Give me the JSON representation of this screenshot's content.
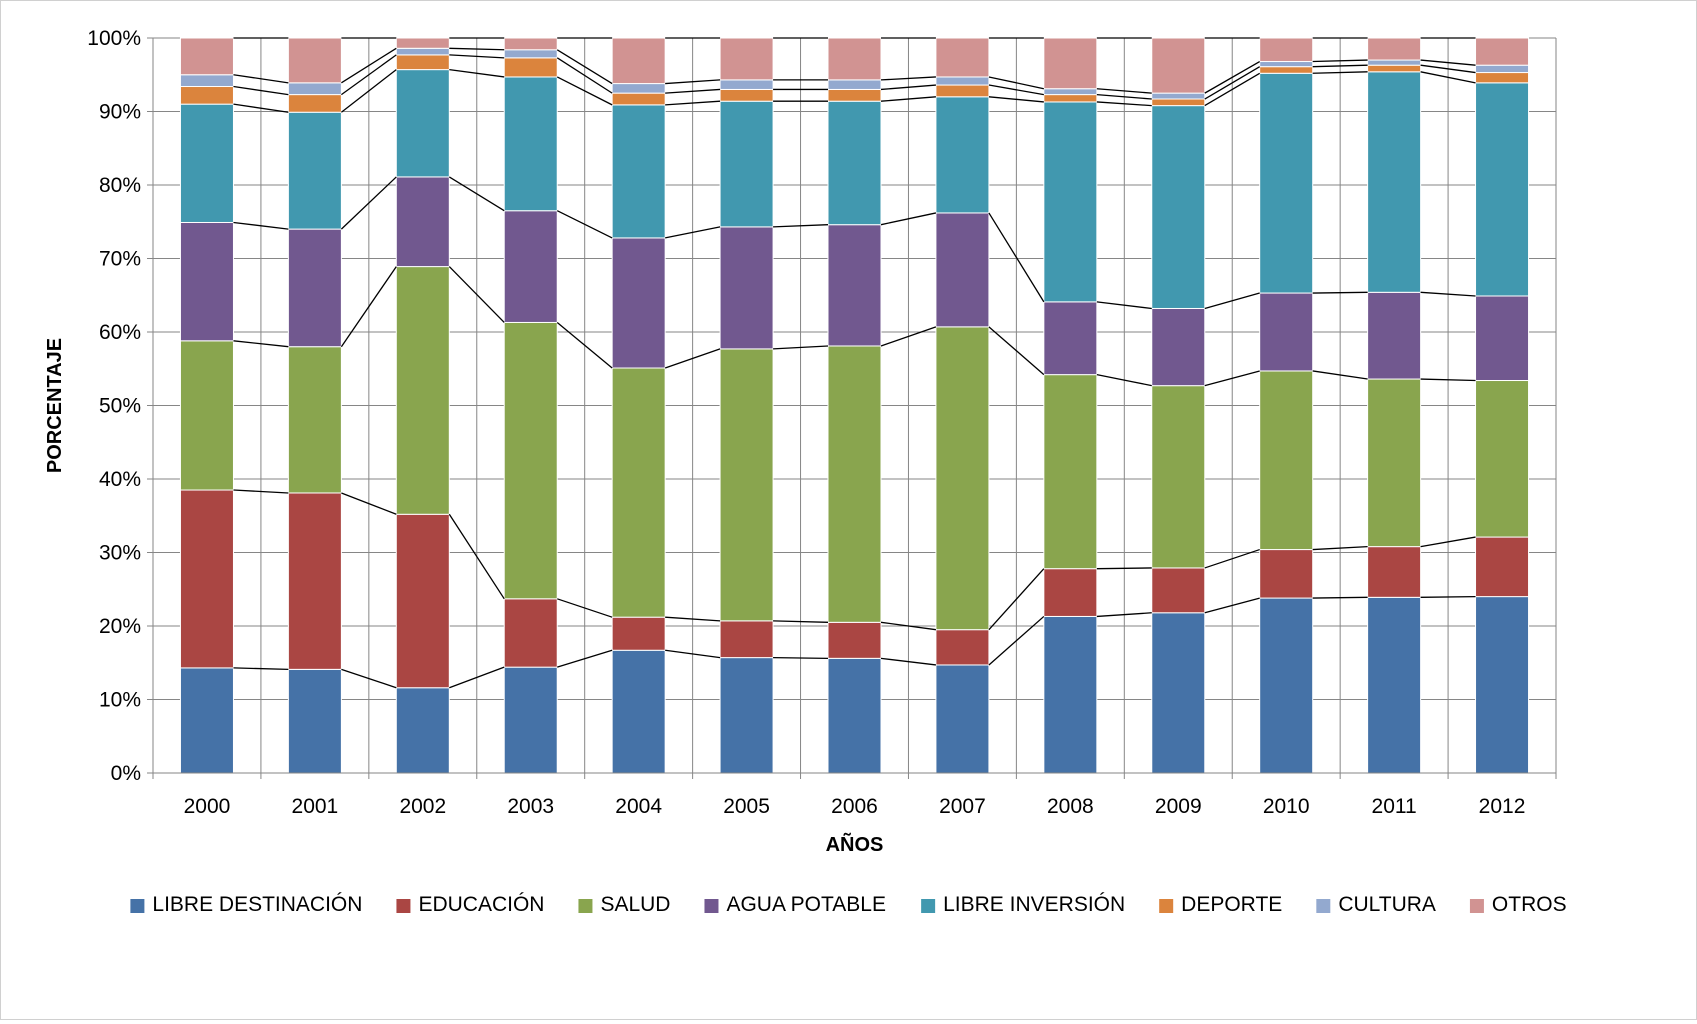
{
  "chart_data": {
    "type": "bar",
    "stacked": "percent",
    "title": "",
    "xlabel": "AÑOS",
    "ylabel": "PORCENTAJE",
    "ylim": [
      0,
      100
    ],
    "yticks": [
      "0%",
      "10%",
      "20%",
      "30%",
      "40%",
      "50%",
      "60%",
      "70%",
      "80%",
      "90%",
      "100%"
    ],
    "grid": true,
    "series_lines": true,
    "legend_position": "bottom",
    "categories": [
      "2000",
      "2001",
      "2002",
      "2003",
      "2004",
      "2005",
      "2006",
      "2007",
      "2008",
      "2009",
      "2010",
      "2011",
      "2012"
    ],
    "series": [
      {
        "name": "LIBRE DESTINACIÓN",
        "color": "#4572A7",
        "values": [
          14.3,
          14.1,
          11.6,
          14.4,
          16.7,
          15.7,
          15.6,
          14.7,
          21.3,
          21.8,
          23.8,
          23.9,
          24.0
        ]
      },
      {
        "name": "EDUCACIÓN",
        "color": "#AA4643",
        "values": [
          24.2,
          24.0,
          23.6,
          9.3,
          4.5,
          5.0,
          4.9,
          4.8,
          6.5,
          6.1,
          6.6,
          6.9,
          8.1
        ]
      },
      {
        "name": "SALUD",
        "color": "#89A54E",
        "values": [
          20.3,
          19.9,
          33.7,
          37.6,
          33.9,
          37.0,
          37.6,
          41.2,
          26.4,
          24.8,
          24.3,
          22.8,
          21.3
        ]
      },
      {
        "name": "AGUA POTABLE",
        "color": "#71588F",
        "values": [
          16.1,
          16.0,
          12.2,
          15.2,
          17.7,
          16.6,
          16.5,
          15.5,
          9.9,
          10.5,
          10.6,
          11.8,
          11.5
        ]
      },
      {
        "name": "LIBRE INVERSIÓN",
        "color": "#4198AF",
        "values": [
          16.1,
          15.9,
          14.6,
          18.2,
          18.1,
          17.1,
          16.8,
          15.8,
          27.2,
          27.6,
          29.9,
          30.0,
          29.0
        ]
      },
      {
        "name": "DEPORTE",
        "color": "#DB843D",
        "values": [
          2.4,
          2.4,
          2.0,
          2.6,
          1.6,
          1.6,
          1.6,
          1.6,
          1.0,
          0.9,
          0.9,
          0.9,
          1.4
        ]
      },
      {
        "name": "CULTURA",
        "color": "#93A9CF",
        "values": [
          1.6,
          1.6,
          0.9,
          1.1,
          1.3,
          1.3,
          1.3,
          1.1,
          0.8,
          0.8,
          0.7,
          0.7,
          1.0
        ]
      },
      {
        "name": "OTROS",
        "color": "#D19392",
        "values": [
          5.0,
          6.1,
          1.4,
          1.6,
          6.2,
          5.7,
          5.7,
          5.3,
          6.9,
          7.5,
          3.2,
          3.0,
          3.7
        ]
      }
    ]
  }
}
